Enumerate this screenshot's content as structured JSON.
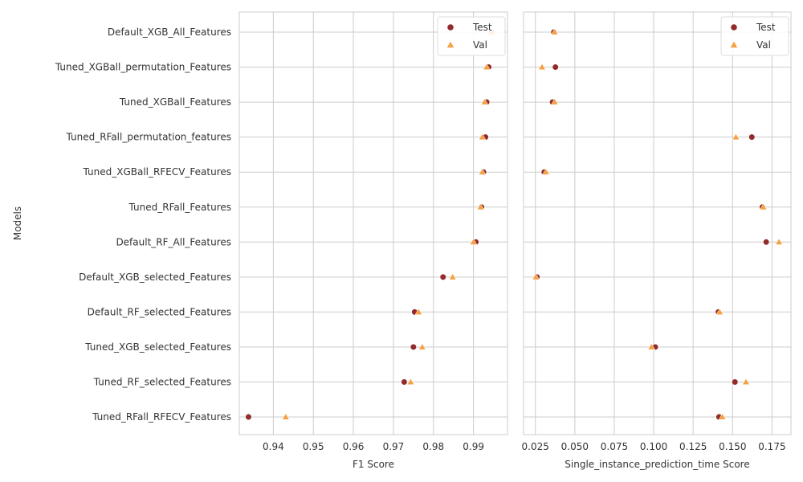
{
  "y_axis_label": "Models",
  "models": [
    "Default_XGB_All_Features",
    "Tuned_XGBall_permutation_Features",
    "Tuned_XGBall_Features",
    "Tuned_RFall_permutation_features",
    "Tuned_XGBall_RFECV_Features",
    "Tuned_RFall_Features",
    "Default_RF_All_Features",
    "Default_XGB_selected_Features",
    "Default_RF_selected_Features",
    "Tuned_XGB_selected_Features",
    "Tuned_RF_selected_Features",
    "Tuned_RFall_RFECV_Features"
  ],
  "colors": {
    "test": "#922b2b",
    "val": "#f5a142",
    "grid": "#cccccc"
  },
  "chart_data": [
    {
      "type": "scatter",
      "xlabel": "F1 Score",
      "ylabel": "Models",
      "xlim": [
        0.9315,
        0.9985
      ],
      "xticks": [
        0.94,
        0.95,
        0.96,
        0.97,
        0.98,
        0.99
      ],
      "xtick_labels": [
        "0.94",
        "0.95",
        "0.96",
        "0.97",
        "0.98",
        "0.99"
      ],
      "legend": "top-right",
      "grid": true,
      "series": [
        {
          "name": "Test",
          "marker": "circle",
          "values": [
            0.9945,
            0.9938,
            0.9933,
            0.993,
            0.9925,
            0.992,
            0.9906,
            0.9824,
            0.9753,
            0.975,
            0.9727,
            0.9338
          ]
        },
        {
          "name": "Val",
          "marker": "triangle",
          "values": [
            0.9945,
            0.9933,
            0.9928,
            0.9922,
            0.9922,
            0.9918,
            0.99,
            0.9848,
            0.9763,
            0.9772,
            0.9743,
            0.9431
          ]
        }
      ]
    },
    {
      "type": "scatter",
      "xlabel": "Single_instance_prediction_time Score",
      "xlim": [
        0.0175,
        0.187
      ],
      "xticks": [
        0.025,
        0.05,
        0.075,
        0.1,
        0.125,
        0.15,
        0.175
      ],
      "xtick_labels": [
        "0.025",
        "0.050",
        "0.075",
        "0.100",
        "0.125",
        "0.150",
        "0.175"
      ],
      "legend": "top-right",
      "grid": true,
      "series": [
        {
          "name": "Test",
          "marker": "circle",
          "values": [
            0.0367,
            0.0377,
            0.0359,
            0.1622,
            0.0306,
            0.1689,
            0.1713,
            0.026,
            0.141,
            0.101,
            0.1515,
            0.1414
          ]
        },
        {
          "name": "Val",
          "marker": "triangle",
          "values": [
            0.0372,
            0.0292,
            0.0372,
            0.1521,
            0.0317,
            0.1695,
            0.1794,
            0.0253,
            0.1418,
            0.0986,
            0.1585,
            0.1435
          ]
        }
      ]
    }
  ]
}
